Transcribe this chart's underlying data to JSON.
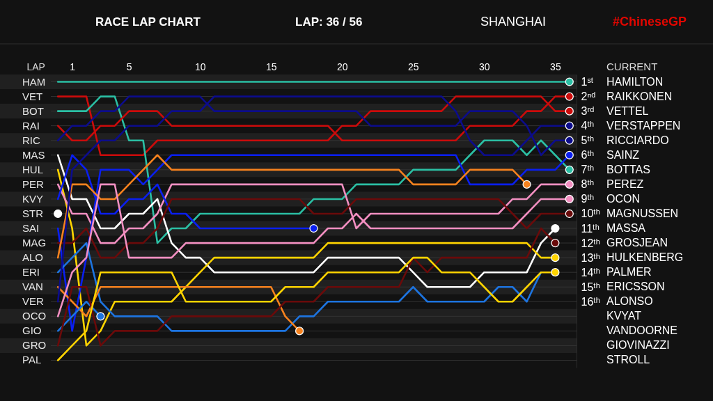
{
  "chart_data": {
    "type": "line",
    "title": "RACE LAP CHART",
    "annotations": [
      "LAP: 36 / 56",
      "SHANGHAI",
      "#ChineseGP",
      "CURRENT",
      "HAMILTON",
      "RAIKKONEN",
      "VETTEL",
      "VERSTAPPEN",
      "RICCIARDO",
      "SAINZ",
      "BOTTAS",
      "PEREZ",
      "OCON",
      "MAGNUSSEN",
      "MASSA",
      "GROSJEAN",
      "HULKENBERG",
      "PALMER",
      "ERICSSON",
      "ALONSO",
      "KVYAT",
      "VANDOORNE",
      "GIOVINAZZI",
      "STROLL"
    ],
    "xlabel": "LAP",
    "grid": "y",
    "legend": false,
    "line_style": "solid",
    "x": [
      0,
      1,
      2,
      3,
      4,
      5,
      6,
      7,
      8,
      9,
      10,
      11,
      12,
      13,
      14,
      15,
      16,
      17,
      18,
      19,
      20,
      21,
      22,
      23,
      24,
      25,
      26,
      27,
      28,
      29,
      30,
      31,
      32,
      33,
      34,
      35,
      36
    ],
    "xlim": [
      -0.5,
      36.5
    ],
    "xticks": [
      1,
      5,
      10,
      15,
      20,
      25,
      30,
      35
    ],
    "ylim": [
      20.5,
      0.5
    ],
    "yticks": [
      {
        "value": 1,
        "label": "1ˢᵗ"
      },
      {
        "value": 2,
        "label": "2ⁿᵈ"
      },
      {
        "value": 3,
        "label": "3ʳᵈ"
      },
      {
        "value": 4,
        "label": "4ᵗʰ"
      },
      {
        "value": 5,
        "label": "5ᵗʰ"
      },
      {
        "value": 6,
        "label": "6ᵗʰ"
      },
      {
        "value": 7,
        "label": "7ᵗʰ"
      },
      {
        "value": 8,
        "label": "8ᵗʰ"
      },
      {
        "value": 9,
        "label": "9ᵗʰ"
      },
      {
        "value": 10,
        "label": "10ᵗʰ"
      },
      {
        "value": 11,
        "label": "11ᵗʰ"
      },
      {
        "value": 12,
        "label": "12ᵗʰ"
      },
      {
        "value": 13,
        "label": "13ᵗʰ"
      },
      {
        "value": 14,
        "label": "14ᵗʰ"
      },
      {
        "value": 15,
        "label": "15ᵗʰ"
      },
      {
        "value": 16,
        "label": "16ᵗʰ"
      },
      {
        "value": 17,
        "label": null
      },
      {
        "value": 18,
        "label": null
      },
      {
        "value": 19,
        "label": null
      },
      {
        "value": 20,
        "label": null
      }
    ],
    "bands": [
      {
        "axis": "y",
        "from": 0.5,
        "to": 1.5,
        "color": "#202020"
      },
      {
        "axis": "y",
        "from": 2.5,
        "to": 3.5,
        "color": "#202020"
      },
      {
        "axis": "y",
        "from": 4.5,
        "to": 5.5,
        "color": "#202020"
      },
      {
        "axis": "y",
        "from": 6.5,
        "to": 7.5,
        "color": "#202020"
      },
      {
        "axis": "y",
        "from": 8.5,
        "to": 9.5,
        "color": "#202020"
      },
      {
        "axis": "y",
        "from": 10.5,
        "to": 11.5,
        "color": "#202020"
      },
      {
        "axis": "y",
        "from": 12.5,
        "to": 13.5,
        "color": "#202020"
      },
      {
        "axis": "y",
        "from": 14.5,
        "to": 15.5,
        "color": "#202020"
      },
      {
        "axis": "y",
        "from": 16.5,
        "to": 17.5,
        "color": "#202020"
      },
      {
        "axis": "y",
        "from": 18.5,
        "to": 19.5,
        "color": "#202020"
      }
    ],
    "series": [
      {
        "name": "HAM",
        "color": "#2bbfa4",
        "values": [
          1,
          1,
          1,
          1,
          1,
          1,
          1,
          1,
          1,
          1,
          1,
          1,
          1,
          1,
          1,
          1,
          1,
          1,
          1,
          1,
          1,
          1,
          1,
          1,
          1,
          1,
          1,
          1,
          1,
          1,
          1,
          1,
          1,
          1,
          1,
          1,
          1
        ]
      },
      {
        "name": "VET",
        "color": "#cc0b0b",
        "values": [
          2,
          2,
          2,
          6,
          6,
          6,
          6,
          5,
          5,
          5,
          5,
          5,
          5,
          5,
          5,
          5,
          5,
          5,
          5,
          5,
          4,
          4,
          3,
          3,
          3,
          3,
          3,
          3,
          2,
          2,
          2,
          2,
          2,
          2,
          2,
          3,
          3
        ]
      },
      {
        "name": "BOT",
        "color": "#2bbfa4",
        "values": [
          3,
          3,
          3,
          2,
          2,
          5,
          5,
          12,
          11,
          11,
          10,
          10,
          10,
          10,
          10,
          10,
          10,
          10,
          9,
          9,
          9,
          8,
          8,
          8,
          8,
          7,
          7,
          7,
          7,
          6,
          5,
          5,
          5,
          6,
          5,
          6,
          7
        ]
      },
      {
        "name": "RAI",
        "color": "#cc0b0b",
        "values": [
          4,
          5,
          5,
          4,
          4,
          3,
          3,
          3,
          4,
          4,
          4,
          4,
          4,
          4,
          4,
          4,
          4,
          4,
          4,
          4,
          5,
          5,
          5,
          5,
          5,
          5,
          5,
          5,
          5,
          4,
          4,
          4,
          4,
          3,
          3,
          2,
          2
        ]
      },
      {
        "name": "RIC",
        "color": "#0c0c8c",
        "values": [
          5,
          4,
          4,
          3,
          3,
          2,
          2,
          2,
          2,
          2,
          2,
          3,
          3,
          3,
          3,
          3,
          3,
          3,
          3,
          3,
          3,
          3,
          4,
          4,
          4,
          4,
          4,
          4,
          4,
          3,
          3,
          3,
          3,
          4,
          6,
          5,
          5
        ]
      },
      {
        "name": "MAS",
        "color": "#ffffff",
        "values": [
          6,
          9,
          9,
          11,
          11,
          10,
          10,
          9,
          12,
          13,
          13,
          14,
          14,
          14,
          14,
          14,
          14,
          14,
          14,
          13,
          13,
          13,
          13,
          13,
          13,
          14,
          15,
          15,
          15,
          15,
          14,
          14,
          14,
          14,
          12,
          11,
          null
        ]
      },
      {
        "name": "HUL",
        "color": "#ffd400",
        "values": [
          7,
          11,
          19,
          18,
          16,
          16,
          16,
          16,
          16,
          15,
          14,
          13,
          13,
          13,
          13,
          13,
          13,
          13,
          13,
          12,
          12,
          12,
          12,
          12,
          12,
          12,
          12,
          12,
          12,
          12,
          12,
          12,
          12,
          12,
          13,
          13,
          null
        ]
      },
      {
        "name": "PER",
        "color": "#f28fc1",
        "values": [
          8,
          10,
          10,
          12,
          12,
          11,
          11,
          10,
          8,
          8,
          8,
          8,
          8,
          8,
          8,
          8,
          8,
          8,
          8,
          8,
          8,
          11,
          10,
          10,
          10,
          10,
          10,
          10,
          10,
          10,
          10,
          10,
          9,
          9,
          8,
          8,
          8
        ]
      },
      {
        "name": "KVY",
        "color": "#0a1ff0",
        "values": [
          9,
          6,
          7,
          10,
          10,
          9,
          9,
          8,
          10,
          10,
          11,
          11,
          11,
          11,
          11,
          11,
          11,
          11,
          11,
          null,
          null,
          null,
          null,
          null,
          null,
          null,
          null,
          null,
          null,
          null,
          null,
          null,
          null,
          null,
          null,
          null,
          null
        ]
      },
      {
        "name": "STR",
        "color": "#ffffff",
        "marker": "circle",
        "values": [
          10,
          null,
          null,
          null,
          null,
          null,
          null,
          null,
          null,
          null,
          null,
          null,
          null,
          null,
          null,
          null,
          null,
          null,
          null,
          null,
          null,
          null,
          null,
          null,
          null,
          null,
          null,
          null,
          null,
          null,
          null,
          null,
          null,
          null,
          null,
          null,
          null
        ]
      },
      {
        "name": "SAI",
        "color": "#0a1ff0",
        "values": [
          11,
          18,
          13,
          7,
          7,
          7,
          8,
          7,
          6,
          6,
          6,
          6,
          6,
          6,
          6,
          6,
          6,
          6,
          6,
          6,
          6,
          6,
          6,
          6,
          6,
          6,
          6,
          6,
          6,
          8,
          8,
          8,
          8,
          7,
          7,
          7,
          6
        ]
      },
      {
        "name": "MAG",
        "color": "#6a0a0a",
        "values": [
          12,
          12,
          11,
          13,
          13,
          12,
          12,
          11,
          9,
          9,
          9,
          9,
          9,
          9,
          9,
          9,
          9,
          9,
          10,
          10,
          10,
          9,
          9,
          9,
          9,
          9,
          9,
          9,
          9,
          9,
          9,
          9,
          10,
          11,
          10,
          10,
          10
        ]
      },
      {
        "name": "ALO",
        "color": "#f7821e",
        "values": [
          13,
          8,
          8,
          9,
          9,
          8,
          7,
          6,
          7,
          7,
          7,
          7,
          7,
          7,
          7,
          7,
          7,
          7,
          7,
          7,
          7,
          7,
          7,
          7,
          7,
          8,
          8,
          8,
          8,
          7,
          7,
          7,
          7,
          8,
          null,
          null,
          null
        ]
      },
      {
        "name": "ERI",
        "color": "#1d74e0",
        "values": [
          14,
          13,
          12,
          16,
          17,
          17,
          17,
          17,
          18,
          18,
          18,
          18,
          18,
          18,
          18,
          18,
          18,
          17,
          17,
          16,
          16,
          16,
          16,
          16,
          16,
          15,
          16,
          16,
          16,
          16,
          16,
          15,
          15,
          16,
          14,
          null,
          null
        ]
      },
      {
        "name": "VAN",
        "color": "#f7821e",
        "values": [
          15,
          16,
          17,
          15,
          15,
          15,
          15,
          15,
          15,
          15,
          15,
          15,
          15,
          15,
          15,
          15,
          17,
          18,
          null,
          null,
          null,
          null,
          null,
          null,
          null,
          null,
          null,
          null,
          null,
          null,
          null,
          null,
          null,
          null,
          null,
          null,
          null
        ]
      },
      {
        "name": "VER",
        "color": "#0c0c8c",
        "values": [
          16,
          7,
          6,
          5,
          5,
          4,
          4,
          4,
          3,
          3,
          3,
          2,
          2,
          2,
          2,
          2,
          2,
          2,
          2,
          2,
          2,
          2,
          2,
          2,
          2,
          2,
          2,
          2,
          3,
          5,
          6,
          6,
          6,
          5,
          4,
          4,
          4
        ]
      },
      {
        "name": "OCO",
        "color": "#f28fc1",
        "values": [
          17,
          14,
          13,
          8,
          8,
          13,
          13,
          13,
          13,
          12,
          12,
          12,
          12,
          12,
          12,
          12,
          12,
          12,
          12,
          11,
          11,
          10,
          11,
          11,
          11,
          11,
          11,
          11,
          11,
          11,
          11,
          11,
          11,
          10,
          9,
          9,
          9
        ]
      },
      {
        "name": "GIO",
        "color": "#1d74e0",
        "values": [
          18,
          17,
          16,
          17,
          null,
          null,
          null,
          null,
          null,
          null,
          null,
          null,
          null,
          null,
          null,
          null,
          null,
          null,
          null,
          null,
          null,
          null,
          null,
          null,
          null,
          null,
          null,
          null,
          null,
          null,
          null,
          null,
          null,
          null,
          null,
          null,
          null
        ]
      },
      {
        "name": "GRO",
        "color": "#6a0a0a",
        "values": [
          19,
          15,
          15,
          19,
          18,
          18,
          18,
          18,
          17,
          17,
          17,
          17,
          17,
          17,
          17,
          17,
          16,
          16,
          16,
          15,
          15,
          15,
          15,
          15,
          15,
          13,
          14,
          13,
          13,
          13,
          13,
          13,
          13,
          13,
          11,
          12,
          null
        ]
      },
      {
        "name": "PAL",
        "color": "#ffd400",
        "values": [
          20,
          19,
          18,
          14,
          14,
          14,
          14,
          14,
          14,
          16,
          16,
          16,
          16,
          16,
          16,
          16,
          15,
          15,
          15,
          14,
          14,
          14,
          14,
          14,
          14,
          13,
          13,
          14,
          14,
          14,
          15,
          16,
          16,
          15,
          14,
          14,
          null
        ]
      },
      {
        "type": "scatter",
        "x": [
          36,
          36,
          36,
          36,
          36,
          36,
          36,
          36,
          36,
          36,
          35,
          35,
          35,
          35,
          33,
          18,
          17,
          3
        ],
        "values": [
          1,
          2,
          3,
          4,
          5,
          6,
          7,
          8,
          9,
          10,
          11,
          12,
          13,
          14,
          8,
          11,
          18,
          17
        ],
        "colors": [
          "#2bbfa4",
          "#cc0b0b",
          "#cc0b0b",
          "#0c0c8c",
          "#0c0c8c",
          "#0a1ff0",
          "#2bbfa4",
          "#f28fc1",
          "#f28fc1",
          "#6a0a0a",
          "#ffffff",
          "#6a0a0a",
          "#ffd400",
          "#ffd400",
          "#f7821e",
          "#0a1ff0",
          "#f7821e",
          "#1d74e0"
        ]
      }
    ]
  }
}
